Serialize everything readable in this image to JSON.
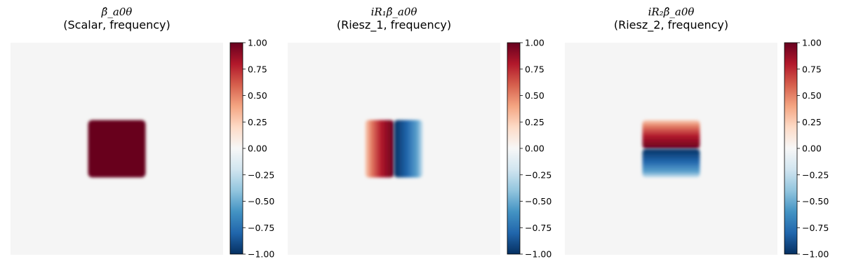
{
  "figure": {
    "panels": [
      {
        "title_symbol": "β̂_a0θ",
        "title_text": "(Scalar, frequency)"
      },
      {
        "title_symbol": "iR₁β̂_a0θ",
        "title_text": "(Riesz_1, frequency)"
      },
      {
        "title_symbol": "iR₂β̂_a0θ",
        "title_text": "(Riesz_2, frequency)"
      }
    ]
  },
  "chart_data": [
    {
      "type": "heatmap",
      "title": "β̂_a0θ (Scalar, frequency)",
      "colormap": "RdBu_r",
      "value_range": [
        -1.0,
        1.0
      ],
      "colorbar_ticks": [
        "1.00",
        "0.75",
        "0.50",
        "0.25",
        "0.00",
        "−0.25",
        "−0.50",
        "−0.75",
        "−1.00"
      ],
      "pattern": "centered square of value 1.00 (approx. 27% of image width), background 0.00",
      "axes_visible": false
    },
    {
      "type": "heatmap",
      "title": "iR₁β̂_a0θ (Riesz_1, frequency)",
      "colormap": "RdBu_r",
      "value_range": [
        -1.0,
        1.0
      ],
      "colorbar_ticks": [
        "1.00",
        "0.75",
        "0.50",
        "0.25",
        "0.00",
        "−0.25",
        "−0.50",
        "−0.75",
        "−1.00"
      ],
      "pattern": "centered square modulated by horizontal direction: positive (red) on left half, negative (blue) on right half",
      "axes_visible": false
    },
    {
      "type": "heatmap",
      "title": "iR₂β̂_a0θ (Riesz_2, frequency)",
      "colormap": "RdBu_r",
      "value_range": [
        -1.0,
        1.0
      ],
      "colorbar_ticks": [
        "1.00",
        "0.75",
        "0.50",
        "0.25",
        "0.00",
        "−0.25",
        "−0.50",
        "−0.75",
        "−1.00"
      ],
      "pattern": "centered square modulated by vertical direction: positive (red) on top half, negative (blue) on bottom half",
      "axes_visible": false
    }
  ]
}
